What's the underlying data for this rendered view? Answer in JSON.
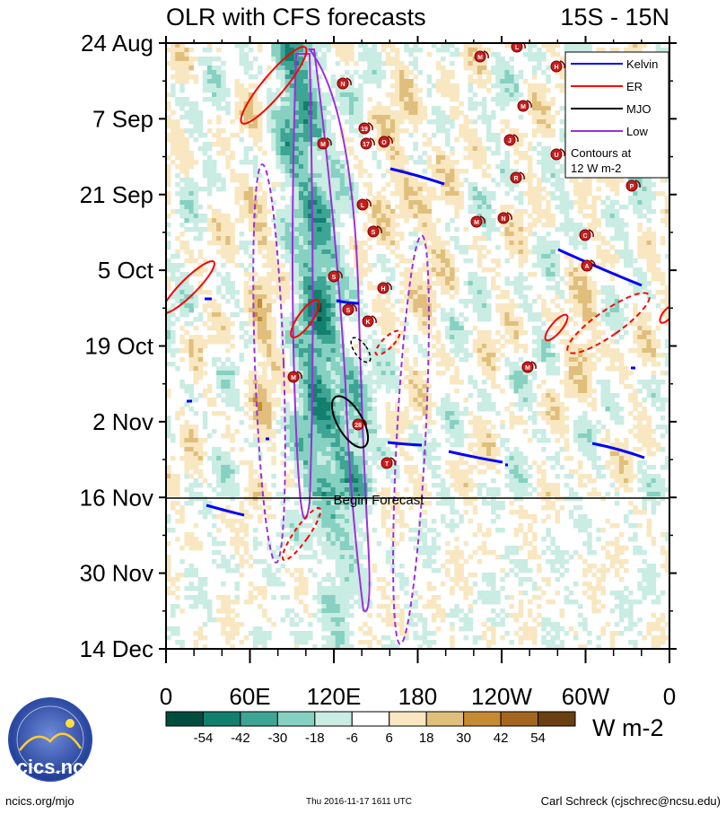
{
  "chart_data": {
    "type": "heatmap",
    "title": "OLR with CFS forecasts",
    "region": "15S - 15N",
    "y_axis": {
      "labels": [
        "24 Aug",
        "7 Sep",
        "21 Sep",
        "5 Oct",
        "19 Oct",
        "2 Nov",
        "16 Nov",
        "30 Nov",
        "14 Dec"
      ],
      "range_days": [
        0,
        112
      ],
      "direction": "top-to-bottom"
    },
    "x_axis": {
      "labels": [
        "0",
        "60E",
        "120E",
        "180",
        "120W",
        "60W",
        "0"
      ],
      "range_lon": [
        0,
        360
      ]
    },
    "forecast_line": {
      "day": 84,
      "label": "Begin Forecast"
    },
    "legend": {
      "placement": "top-right",
      "entries": [
        {
          "name": "Kelvin",
          "color": "#0000ff"
        },
        {
          "name": "ER",
          "color": "#ff0000"
        },
        {
          "name": "MJO",
          "color": "#000000"
        },
        {
          "name": "Low",
          "color": "#9c2fdc"
        }
      ],
      "note_line1": "Contours at",
      "note_line2": "12 W m-2"
    },
    "colorbar": {
      "labels": [
        "-54",
        "-42",
        "-30",
        "-18",
        "-6",
        "6",
        "18",
        "30",
        "42",
        "54"
      ],
      "colors": [
        "#004d3e",
        "#137f6e",
        "#3ea494",
        "#86d1c1",
        "#c9ece3",
        "#ffffff",
        "#f8e7c0",
        "#e0bf7d",
        "#c68a34",
        "#a4661f",
        "#6a3f12"
      ],
      "units": "W m-2"
    },
    "storm_labels": [
      "L",
      "M",
      "H",
      "N",
      "M",
      "19",
      "M",
      "17",
      "O",
      "J",
      "U",
      "R",
      "P",
      "L",
      "M",
      "N",
      "C",
      "A",
      "S",
      "S",
      "H",
      "S",
      "K",
      "M",
      "M",
      "28",
      "T"
    ]
  },
  "footer": {
    "left": "ncics.org/mjo",
    "center": "Thu 2016-11-17 1611 UTC",
    "right": "Carl Schreck (cjschrec@ncsu.edu)",
    "logo_text": "cics.nc"
  }
}
